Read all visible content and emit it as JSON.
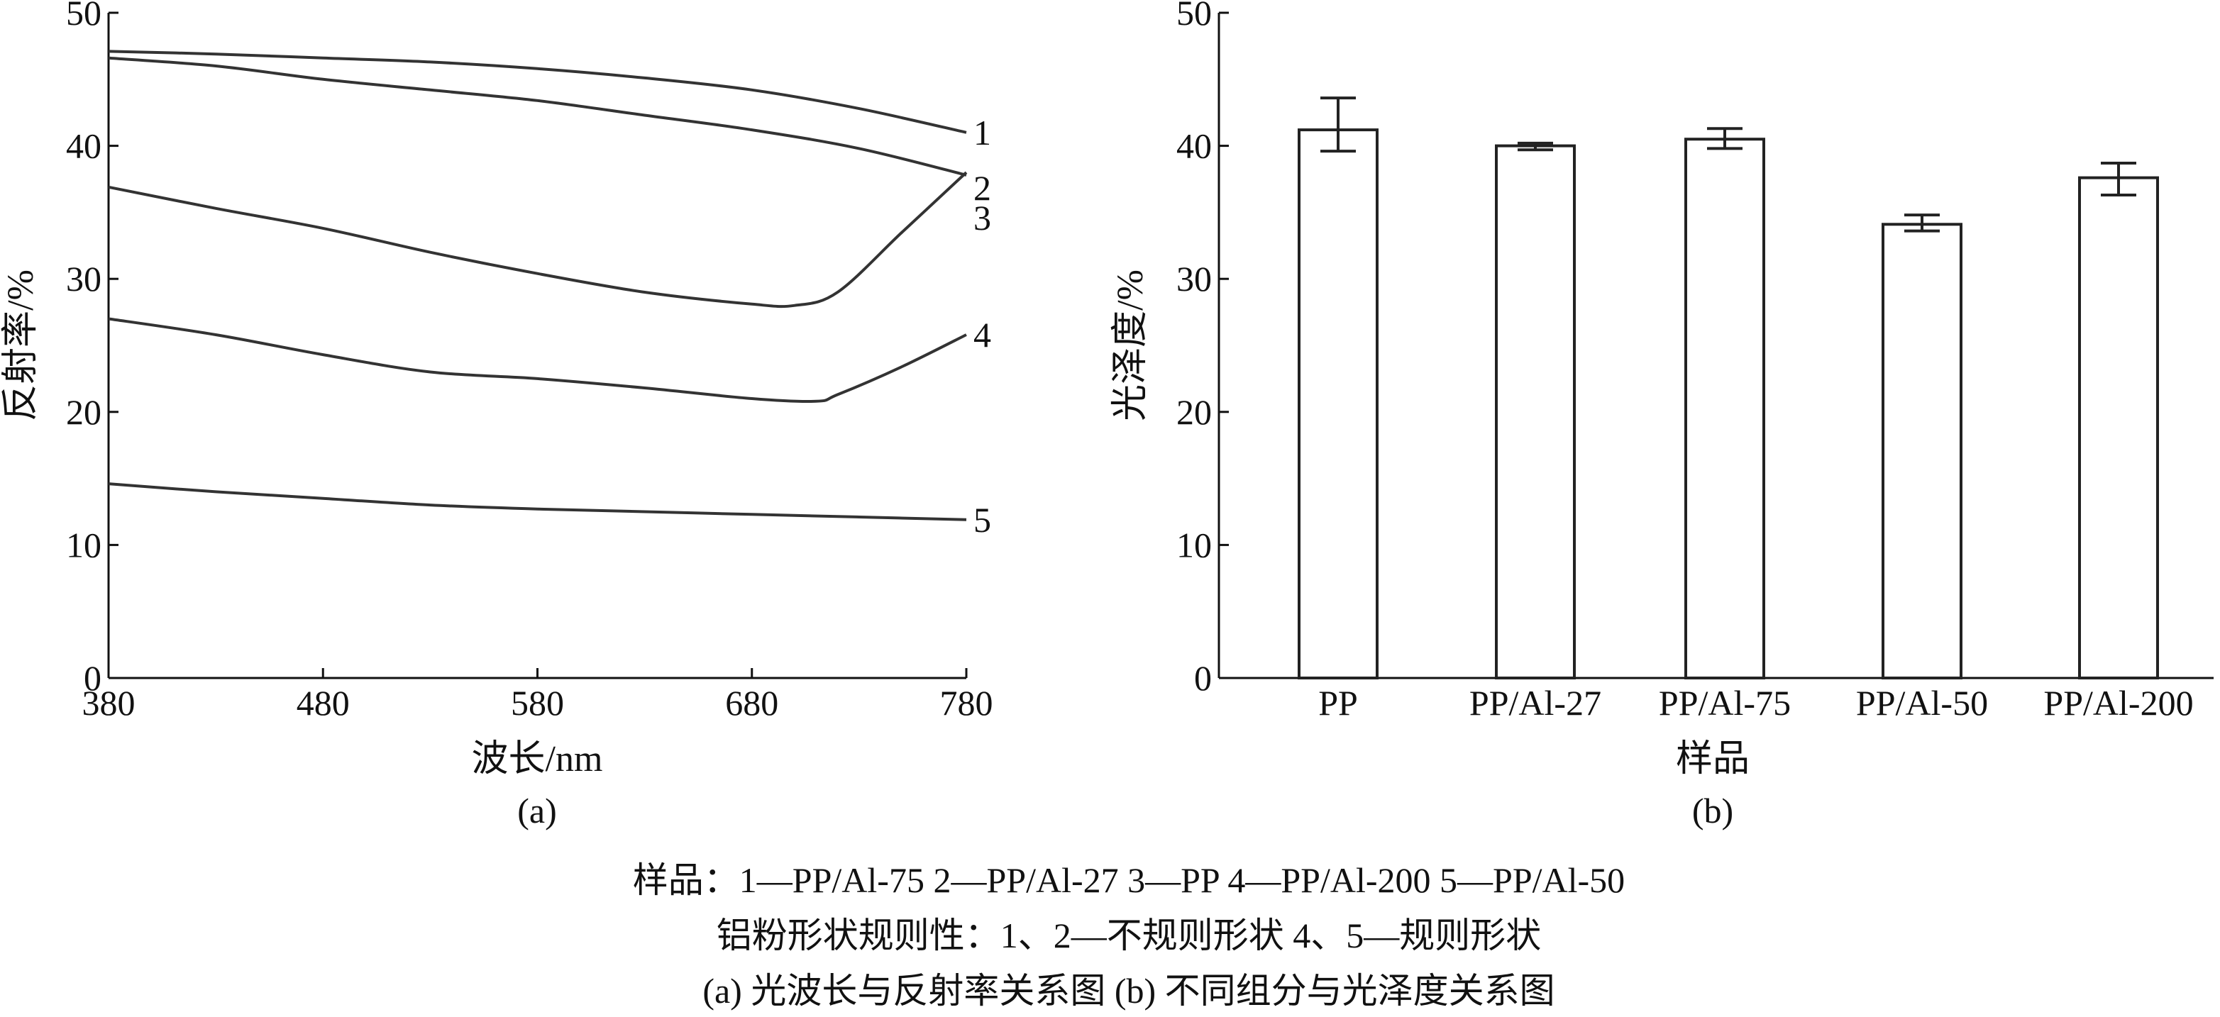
{
  "chart_data": [
    {
      "panel": "(a)",
      "type": "line",
      "xlabel": "波长/nm",
      "ylabel": "反射率/%",
      "xlim": [
        380,
        780
      ],
      "ylim": [
        0,
        50
      ],
      "xticks": [
        "380",
        "480",
        "580",
        "680",
        "780"
      ],
      "yticks": [
        "0",
        "10",
        "20",
        "30",
        "40",
        "50"
      ],
      "grid": false,
      "series": [
        {
          "name": "1",
          "x": [
            380,
            430,
            480,
            530,
            580,
            630,
            680,
            730,
            780
          ],
          "y": [
            47.1,
            46.9,
            46.6,
            46.3,
            45.8,
            45.1,
            44.2,
            42.8,
            41.0
          ]
        },
        {
          "name": "2",
          "x": [
            380,
            430,
            480,
            530,
            580,
            630,
            680,
            730,
            780
          ],
          "y": [
            46.6,
            46.0,
            45.0,
            44.2,
            43.4,
            42.3,
            41.2,
            39.8,
            37.8
          ]
        },
        {
          "name": "3",
          "x": [
            380,
            430,
            480,
            530,
            580,
            630,
            680,
            700,
            720,
            750,
            780
          ],
          "y": [
            36.9,
            35.3,
            33.8,
            32.0,
            30.4,
            29.0,
            28.1,
            28.0,
            29.0,
            33.5,
            38.0
          ]
        },
        {
          "name": "4",
          "x": [
            380,
            430,
            480,
            530,
            580,
            630,
            680,
            710,
            720,
            750,
            780
          ],
          "y": [
            27.0,
            25.8,
            24.3,
            23.0,
            22.5,
            21.8,
            21.0,
            20.8,
            21.3,
            23.4,
            25.8
          ]
        },
        {
          "name": "5",
          "x": [
            380,
            430,
            480,
            530,
            580,
            630,
            680,
            730,
            780
          ],
          "y": [
            14.6,
            14.0,
            13.5,
            13.0,
            12.7,
            12.5,
            12.3,
            12.1,
            11.9
          ]
        }
      ]
    },
    {
      "panel": "(b)",
      "type": "bar",
      "xlabel": "样品",
      "ylabel": "光泽度/%",
      "ylim": [
        0,
        50
      ],
      "yticks": [
        "0",
        "10",
        "20",
        "30",
        "40",
        "50"
      ],
      "grid": false,
      "categories": [
        "PP",
        "PP/Al-27",
        "PP/Al-75",
        "PP/Al-50",
        "PP/Al-200"
      ],
      "values": [
        41.2,
        40.0,
        40.5,
        34.1,
        37.6
      ],
      "error_low": [
        39.6,
        39.7,
        39.8,
        33.6,
        36.3
      ],
      "error_high": [
        43.6,
        40.2,
        41.3,
        34.8,
        38.7
      ]
    }
  ],
  "caption": {
    "line1": "样品：1—PP/Al-75    2—PP/Al-27    3—PP    4—PP/Al-200    5—PP/Al-50",
    "line2": "铝粉形状规则性：1、2—不规则形状    4、5—规则形状",
    "line3": "(a) 光波长与反射率关系图    (b) 不同组分与光泽度关系图"
  }
}
